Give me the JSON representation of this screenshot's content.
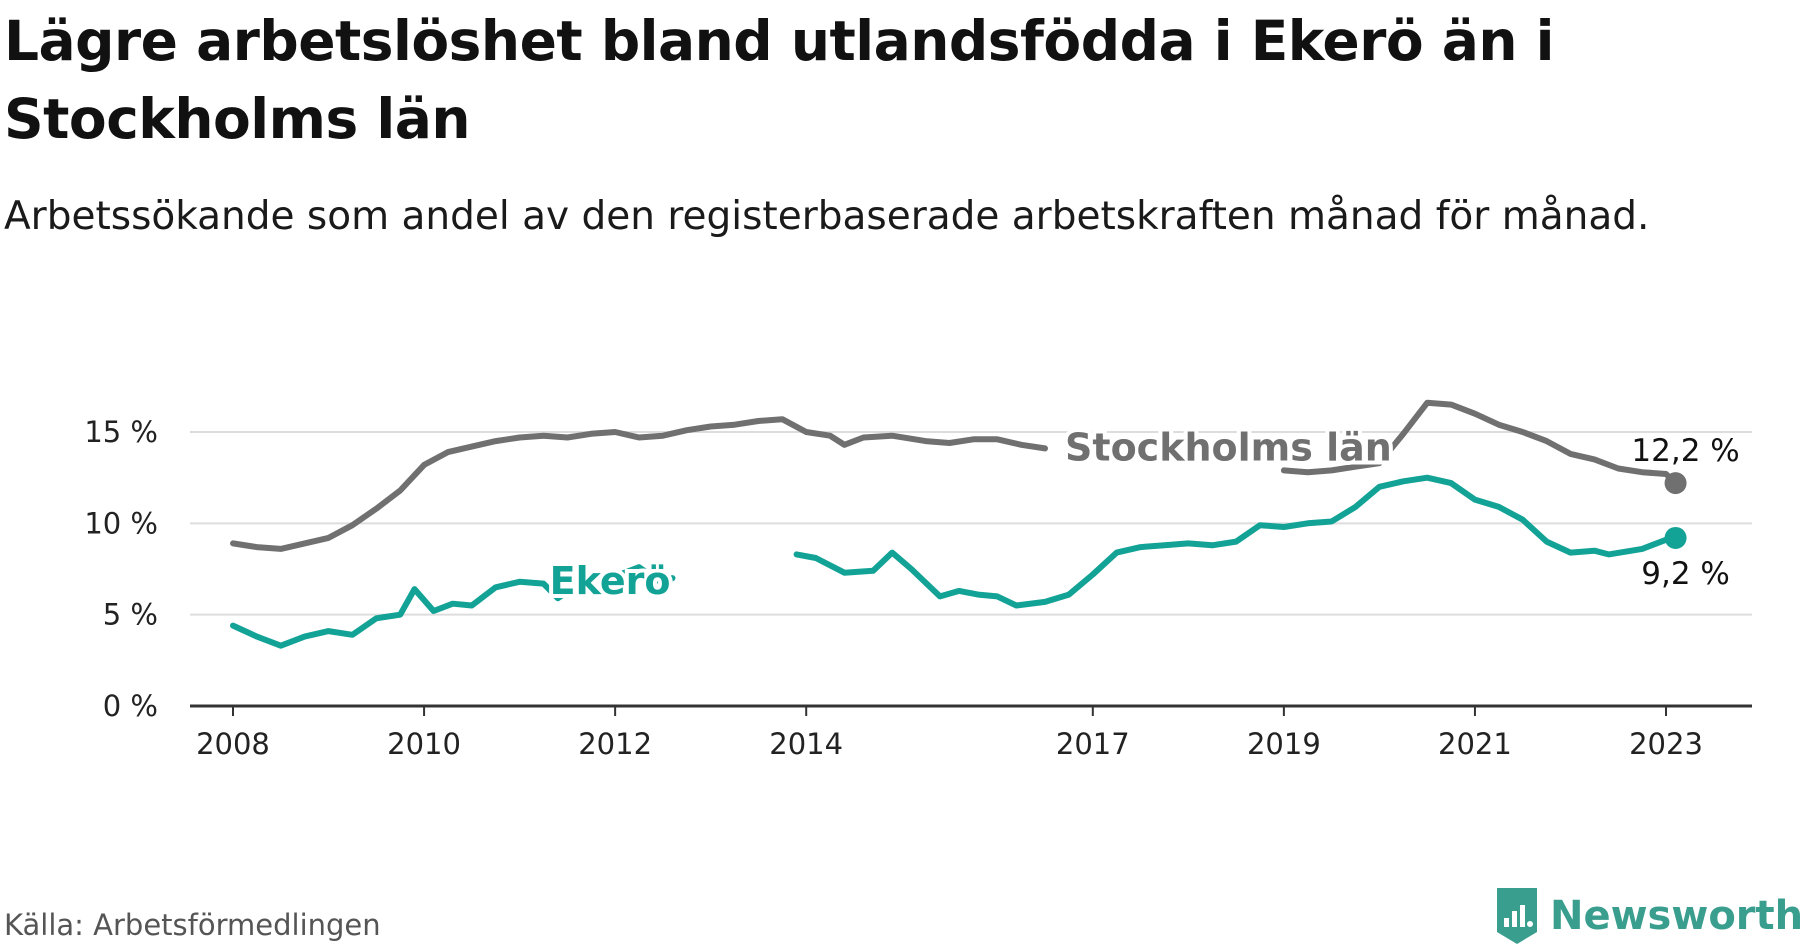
{
  "title": "Lägre arbetslöshet bland utlandsfödda i Ekerö än i Stockholms län",
  "subtitle": "Arbetssökande som andel av den registerbaserade arbetskraften månad för månad.",
  "source": "Källa: Arbetsförmedlingen",
  "brand": {
    "name": "Newsworthy",
    "icon": "newsworthy-logo-icon",
    "color": "#3a9e8e"
  },
  "colors": {
    "stockholm": "#707070",
    "ekero": "#13a396",
    "grid": "#dddddd",
    "axis": "#333333"
  },
  "chart_data": {
    "type": "line",
    "title": "Lägre arbetslöshet bland utlandsfödda i Ekerö än i Stockholms län",
    "xlabel": "",
    "ylabel": "",
    "xlim": [
      2007.55,
      2023.9
    ],
    "ylim": [
      0,
      15
    ],
    "x_ticks": [
      2008,
      2010,
      2012,
      2014,
      2017,
      2019,
      2021,
      2023
    ],
    "x_tick_labels": [
      "2008",
      "2010",
      "2012",
      "2014",
      "2017",
      "2019",
      "2021",
      "2023"
    ],
    "y_ticks": [
      0,
      5,
      10,
      15
    ],
    "y_tick_labels": [
      "0 %",
      "5 %",
      "10 %",
      "15 %"
    ],
    "grid": true,
    "series": [
      {
        "name": "Stockholms län",
        "color": "#707070",
        "end_label": "12,2 %",
        "points": [
          [
            2008.0,
            8.9
          ],
          [
            2008.25,
            8.7
          ],
          [
            2008.5,
            8.6
          ],
          [
            2008.75,
            8.9
          ],
          [
            2009.0,
            9.2
          ],
          [
            2009.25,
            9.9
          ],
          [
            2009.5,
            10.8
          ],
          [
            2009.75,
            11.8
          ],
          [
            2010.0,
            13.2
          ],
          [
            2010.25,
            13.9
          ],
          [
            2010.5,
            14.2
          ],
          [
            2010.75,
            14.5
          ],
          [
            2011.0,
            14.7
          ],
          [
            2011.25,
            14.8
          ],
          [
            2011.5,
            14.7
          ],
          [
            2011.75,
            14.9
          ],
          [
            2012.0,
            15.0
          ],
          [
            2012.25,
            14.7
          ],
          [
            2012.5,
            14.8
          ],
          [
            2012.75,
            15.1
          ],
          [
            2013.0,
            15.3
          ],
          [
            2013.25,
            15.4
          ],
          [
            2013.5,
            15.6
          ],
          [
            2013.75,
            15.7
          ],
          [
            2014.0,
            15.0
          ],
          [
            2014.25,
            14.8
          ],
          [
            2014.4,
            14.3
          ],
          [
            2014.6,
            14.7
          ],
          [
            2014.9,
            14.8
          ],
          [
            2015.25,
            14.5
          ],
          [
            2015.5,
            14.4
          ],
          [
            2015.75,
            14.6
          ],
          [
            2016.0,
            14.6
          ],
          [
            2016.25,
            14.3
          ],
          [
            2016.5,
            14.1
          ],
          [
            2019.0,
            12.9
          ],
          [
            2019.25,
            12.8
          ],
          [
            2019.5,
            12.9
          ],
          [
            2019.75,
            13.1
          ],
          [
            2020.0,
            13.3
          ],
          [
            2020.25,
            14.9
          ],
          [
            2020.5,
            16.6
          ],
          [
            2020.75,
            16.5
          ],
          [
            2021.0,
            16.0
          ],
          [
            2021.25,
            15.4
          ],
          [
            2021.5,
            15.0
          ],
          [
            2021.75,
            14.5
          ],
          [
            2022.0,
            13.8
          ],
          [
            2022.25,
            13.5
          ],
          [
            2022.5,
            13.0
          ],
          [
            2022.75,
            12.8
          ],
          [
            2023.0,
            12.7
          ],
          [
            2023.1,
            12.2
          ]
        ]
      },
      {
        "name": "Ekerö",
        "color": "#13a396",
        "end_label": "9,2 %",
        "points": [
          [
            2008.0,
            4.4
          ],
          [
            2008.25,
            3.8
          ],
          [
            2008.5,
            3.3
          ],
          [
            2008.75,
            3.8
          ],
          [
            2009.0,
            4.1
          ],
          [
            2009.25,
            3.9
          ],
          [
            2009.5,
            4.8
          ],
          [
            2009.75,
            5.0
          ],
          [
            2009.9,
            6.4
          ],
          [
            2010.1,
            5.2
          ],
          [
            2010.3,
            5.6
          ],
          [
            2010.5,
            5.5
          ],
          [
            2010.75,
            6.5
          ],
          [
            2011.0,
            6.8
          ],
          [
            2011.25,
            6.7
          ],
          [
            2011.4,
            5.9
          ],
          [
            2011.6,
            6.6
          ],
          [
            2011.8,
            7.0
          ],
          [
            2012.0,
            7.1
          ],
          [
            2012.25,
            7.6
          ],
          [
            2012.5,
            6.7
          ],
          [
            2012.6,
            7.0
          ],
          [
            2013.9,
            8.3
          ],
          [
            2014.1,
            8.1
          ],
          [
            2014.4,
            7.3
          ],
          [
            2014.7,
            7.4
          ],
          [
            2014.9,
            8.4
          ],
          [
            2015.1,
            7.5
          ],
          [
            2015.4,
            6.0
          ],
          [
            2015.6,
            6.3
          ],
          [
            2015.8,
            6.1
          ],
          [
            2016.0,
            6.0
          ],
          [
            2016.2,
            5.5
          ],
          [
            2016.5,
            5.7
          ],
          [
            2016.75,
            6.1
          ],
          [
            2017.0,
            7.2
          ],
          [
            2017.25,
            8.4
          ],
          [
            2017.5,
            8.7
          ],
          [
            2017.75,
            8.8
          ],
          [
            2018.0,
            8.9
          ],
          [
            2018.25,
            8.8
          ],
          [
            2018.5,
            9.0
          ],
          [
            2018.75,
            9.9
          ],
          [
            2019.0,
            9.8
          ],
          [
            2019.25,
            10.0
          ],
          [
            2019.5,
            10.1
          ],
          [
            2019.75,
            10.9
          ],
          [
            2020.0,
            12.0
          ],
          [
            2020.25,
            12.3
          ],
          [
            2020.5,
            12.5
          ],
          [
            2020.75,
            12.2
          ],
          [
            2021.0,
            11.3
          ],
          [
            2021.25,
            10.9
          ],
          [
            2021.5,
            10.2
          ],
          [
            2021.75,
            9.0
          ],
          [
            2022.0,
            8.4
          ],
          [
            2022.25,
            8.5
          ],
          [
            2022.4,
            8.3
          ],
          [
            2022.75,
            8.6
          ],
          [
            2023.0,
            9.1
          ],
          [
            2023.1,
            9.2
          ]
        ]
      }
    ]
  }
}
